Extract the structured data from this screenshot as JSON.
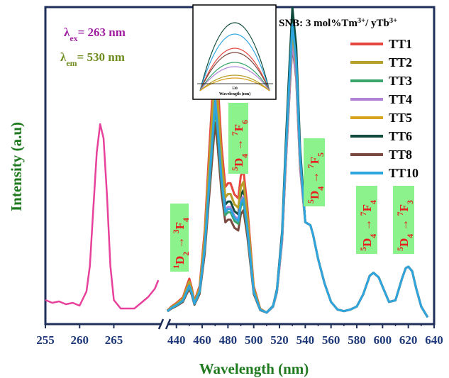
{
  "chart_data": {
    "type": "line",
    "xlabel": "Wavelength (nm)",
    "ylabel": "Intensity (a.u)",
    "axis_segments": [
      {
        "xlim": [
          255,
          272
        ],
        "ticks": [
          255,
          260,
          265
        ]
      },
      {
        "xlim": [
          433,
          640
        ],
        "ticks": [
          440,
          460,
          480,
          500,
          520,
          540,
          560,
          580,
          600,
          620,
          640
        ]
      }
    ],
    "y_ticks_labeled": false,
    "excitation": {
      "label": "λex= 263 nm",
      "color": "#e8419b",
      "x": [
        255,
        256,
        257,
        258,
        259,
        260,
        261,
        261.5,
        262,
        262.5,
        263,
        263.5,
        264,
        264.5,
        265,
        266,
        267,
        268,
        269,
        270,
        271,
        271.5
      ],
      "y": [
        0.03,
        0.02,
        0.025,
        0.015,
        0.02,
        0.01,
        0.06,
        0.15,
        0.35,
        0.55,
        0.65,
        0.6,
        0.4,
        0.15,
        0.03,
        0.0,
        0.0,
        0.0,
        0.02,
        0.04,
        0.07,
        0.1
      ]
    },
    "emission_label": "λem= 530 nm",
    "emission_x": [
      433,
      436,
      440,
      445,
      448,
      450,
      452,
      454,
      458,
      462,
      465,
      468,
      470,
      472,
      475,
      478,
      480,
      482,
      485,
      488,
      490,
      492,
      495,
      498,
      500,
      505,
      510,
      515,
      518,
      522,
      525,
      528,
      530,
      533,
      536,
      540,
      544,
      546,
      550,
      555,
      560,
      565,
      570,
      575,
      580,
      585,
      590,
      593,
      597,
      600,
      605,
      610,
      615,
      618,
      620,
      623,
      626,
      630,
      635
    ],
    "emission_base": [
      0.02,
      0.04,
      0.06,
      0.09,
      0.15,
      0.19,
      0.14,
      0.07,
      0.15,
      0.45,
      0.82,
      1.18,
      1.42,
      1.25,
      0.9,
      0.68,
      0.7,
      0.7,
      0.64,
      0.62,
      0.74,
      0.77,
      0.58,
      0.32,
      0.15,
      0.03,
      0.01,
      0.05,
      0.15,
      0.5,
      1.05,
      1.55,
      1.85,
      1.62,
      1.0,
      0.6,
      0.58,
      0.52,
      0.36,
      0.2,
      0.08,
      0.03,
      0.02,
      0.03,
      0.05,
      0.13,
      0.25,
      0.27,
      0.24,
      0.18,
      0.08,
      0.09,
      0.23,
      0.3,
      0.31,
      0.28,
      0.17,
      0.05,
      -0.02
    ],
    "series": [
      {
        "name": "TT1",
        "color": "#e5473f",
        "blue_scale": 1.22,
        "peak530_scale": 0.98
      },
      {
        "name": "TT2",
        "color": "#b6a02b",
        "blue_scale": 1.12,
        "peak530_scale": 1.0
      },
      {
        "name": "TT3",
        "color": "#3aa56d",
        "blue_scale": 0.95,
        "peak530_scale": 1.0
      },
      {
        "name": "TT4",
        "color": "#b083d6",
        "blue_scale": 1.0,
        "peak530_scale": 0.96
      },
      {
        "name": "TT5",
        "color": "#d7a21f",
        "blue_scale": 1.12,
        "peak530_scale": 1.0
      },
      {
        "name": "TT6",
        "color": "#0f4c3d",
        "blue_scale": 1.05,
        "peak530_scale": 1.08
      },
      {
        "name": "TT8",
        "color": "#7a4a40",
        "blue_scale": 0.88,
        "peak530_scale": 0.95
      },
      {
        "name": "TT10",
        "color": "#2fa5e0",
        "blue_scale": 0.98,
        "peak530_scale": 1.02
      }
    ],
    "annotations": [
      {
        "lower": "1D2",
        "upper": "3F4",
        "peak_x": 450
      },
      {
        "lower": "5D4",
        "upper": "7F6",
        "peak_x": 488
      },
      {
        "lower": "5D4",
        "upper": "7F5",
        "peak_x": 545
      },
      {
        "lower": "5D4",
        "upper": "7F4",
        "peak_x": 590
      },
      {
        "lower": "5D4",
        "upper": "7F3",
        "peak_x": 620
      }
    ],
    "legend": {
      "title": "SNB: 3 mol%Tm3+/ yTb3+",
      "placement": "top-right"
    },
    "inset": {
      "xlabel": "Wavelength (nm)",
      "tick": "530",
      "placement": "top-center"
    },
    "colors": {
      "axis": "#1f2f5a",
      "tick_text": "#1f3a7a",
      "axis_title": "#1f7a1f",
      "ex_label": "#a020a0",
      "em_label": "#6f8c1f",
      "annotation_bg": "#8cf28c",
      "annotation_text": "#e62020"
    }
  }
}
